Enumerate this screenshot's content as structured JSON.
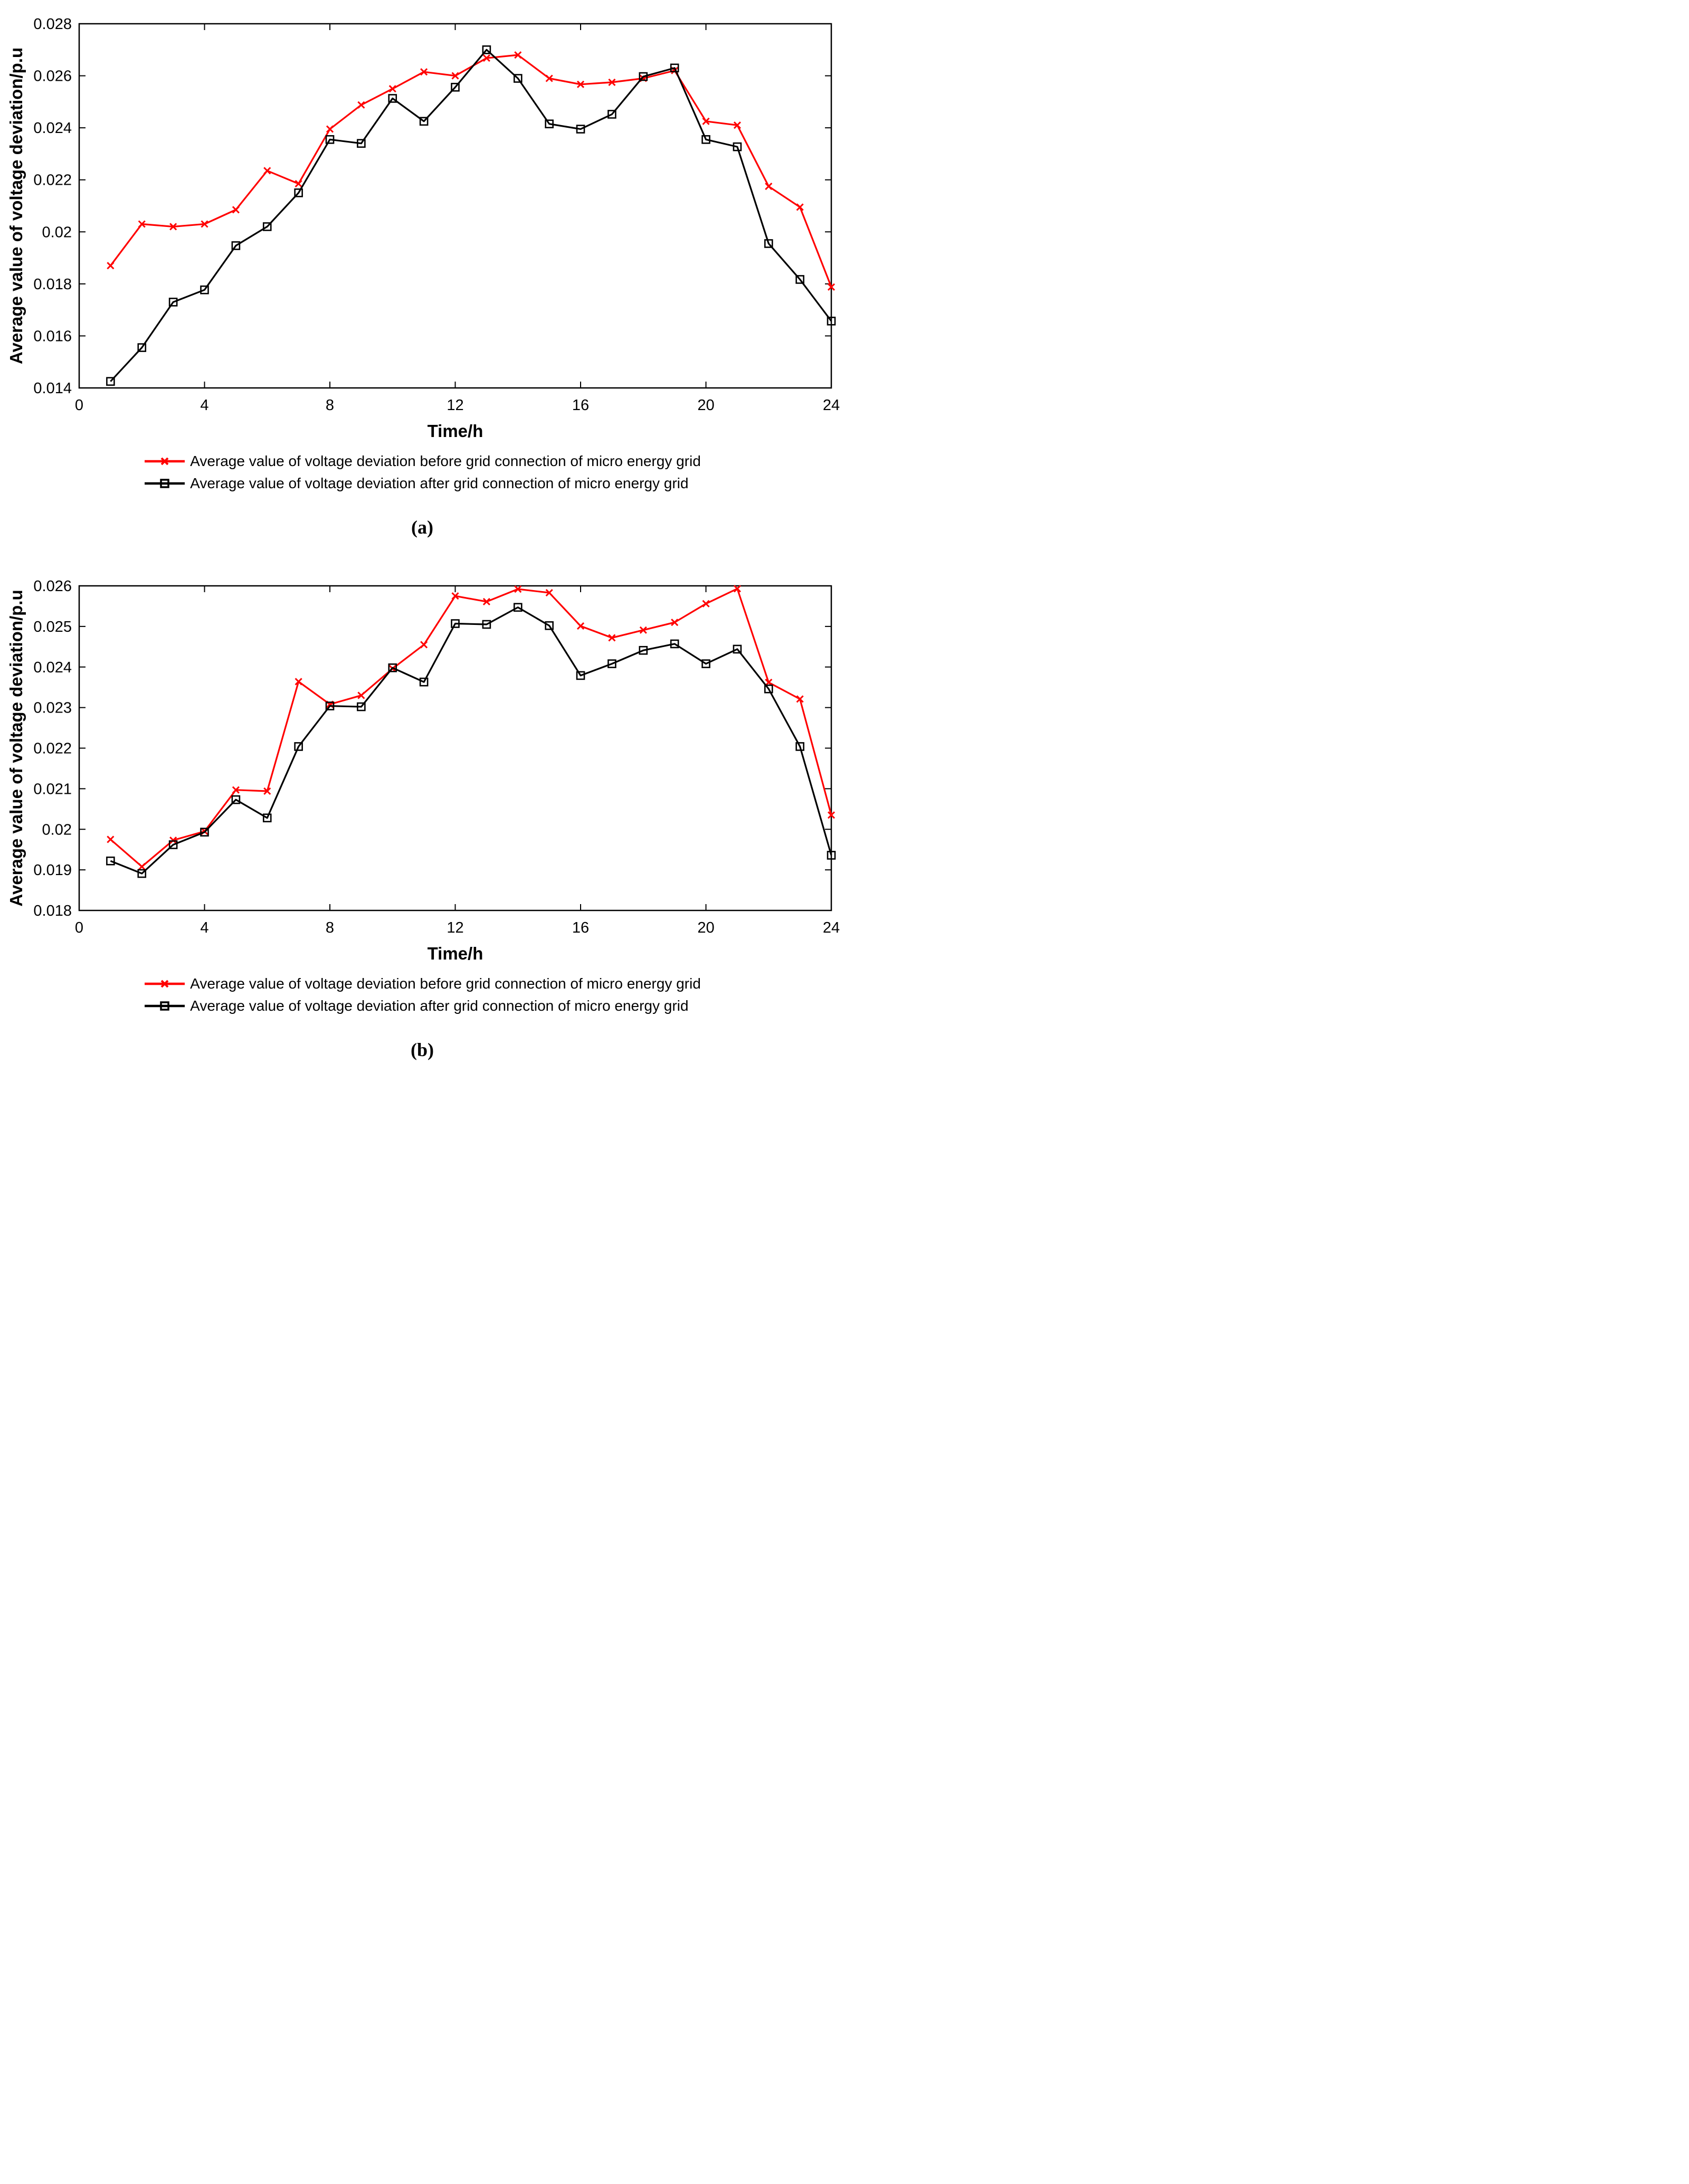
{
  "chart_data": [
    {
      "type": "line",
      "panel": "a",
      "caption": "(a)",
      "xlabel": "Time/h",
      "ylabel": "Average value of voltage deviation/p.u",
      "xlim": [
        0,
        24
      ],
      "ylim": [
        0.014,
        0.028
      ],
      "xticks": [
        0,
        4,
        8,
        12,
        16,
        20,
        24
      ],
      "ytick_labels": [
        "0.014",
        "0.016",
        "0.018",
        "0.02",
        "0.022",
        "0.024",
        "0.026",
        "0.028"
      ],
      "grid": false,
      "legend_position": "below",
      "x": [
        1,
        2,
        3,
        4,
        5,
        6,
        7,
        8,
        9,
        10,
        11,
        12,
        13,
        14,
        15,
        16,
        17,
        18,
        19,
        20,
        21,
        22,
        23,
        24
      ],
      "series": [
        {
          "name": "Average value of voltage deviation before grid connection of micro energy grid",
          "color": "#ff0000",
          "marker": "x",
          "values": [
            0.0187,
            0.0203,
            0.0202,
            0.0203,
            0.02085,
            0.02235,
            0.02185,
            0.02395,
            0.02488,
            0.0255,
            0.02615,
            0.026,
            0.02668,
            0.0268,
            0.0259,
            0.02567,
            0.02575,
            0.0259,
            0.0262,
            0.02425,
            0.0241,
            0.02175,
            0.02095,
            0.01788
          ]
        },
        {
          "name": "Average value of voltage deviation after grid connection of micro energy grid",
          "color": "#000000",
          "marker": "square",
          "values": [
            0.01425,
            0.01555,
            0.0173,
            0.01777,
            0.01947,
            0.0202,
            0.0215,
            0.02355,
            0.0234,
            0.02513,
            0.02425,
            0.02556,
            0.027,
            0.0259,
            0.02415,
            0.02395,
            0.02452,
            0.02597,
            0.0263,
            0.02355,
            0.02327,
            0.01955,
            0.01817,
            0.01657
          ]
        }
      ]
    },
    {
      "type": "line",
      "panel": "b",
      "caption": "(b)",
      "xlabel": "Time/h",
      "ylabel": "Average value of voltage deviation/p.u",
      "xlim": [
        0,
        24
      ],
      "ylim": [
        0.018,
        0.026
      ],
      "xticks": [
        0,
        4,
        8,
        12,
        16,
        20,
        24
      ],
      "ytick_labels": [
        "0.018",
        "0.019",
        "0.02",
        "0.021",
        "0.022",
        "0.023",
        "0.024",
        "0.025",
        "0.026"
      ],
      "grid": false,
      "legend_position": "below",
      "x": [
        1,
        2,
        3,
        4,
        5,
        6,
        7,
        8,
        9,
        10,
        11,
        12,
        13,
        14,
        15,
        16,
        17,
        18,
        19,
        20,
        21,
        22,
        23,
        24
      ],
      "series": [
        {
          "name": "Average value of voltage deviation before grid connection of micro energy grid",
          "color": "#ff0000",
          "marker": "x",
          "values": [
            0.01975,
            0.01908,
            0.01973,
            0.01995,
            0.02097,
            0.02094,
            0.02364,
            0.02308,
            0.0233,
            0.02396,
            0.02455,
            0.02575,
            0.02561,
            0.02592,
            0.02583,
            0.02501,
            0.02472,
            0.02491,
            0.0251,
            0.02556,
            0.02593,
            0.02362,
            0.02321,
            0.02035
          ]
        },
        {
          "name": "Average value of voltage deviation after grid connection of micro energy grid",
          "color": "#000000",
          "marker": "square",
          "values": [
            0.01922,
            0.01891,
            0.01962,
            0.01993,
            0.02073,
            0.02028,
            0.02204,
            0.02304,
            0.02302,
            0.02398,
            0.02363,
            0.02507,
            0.02505,
            0.02547,
            0.02502,
            0.02379,
            0.02408,
            0.02441,
            0.02457,
            0.02408,
            0.02444,
            0.02346,
            0.02204,
            0.01936
          ]
        }
      ]
    }
  ]
}
